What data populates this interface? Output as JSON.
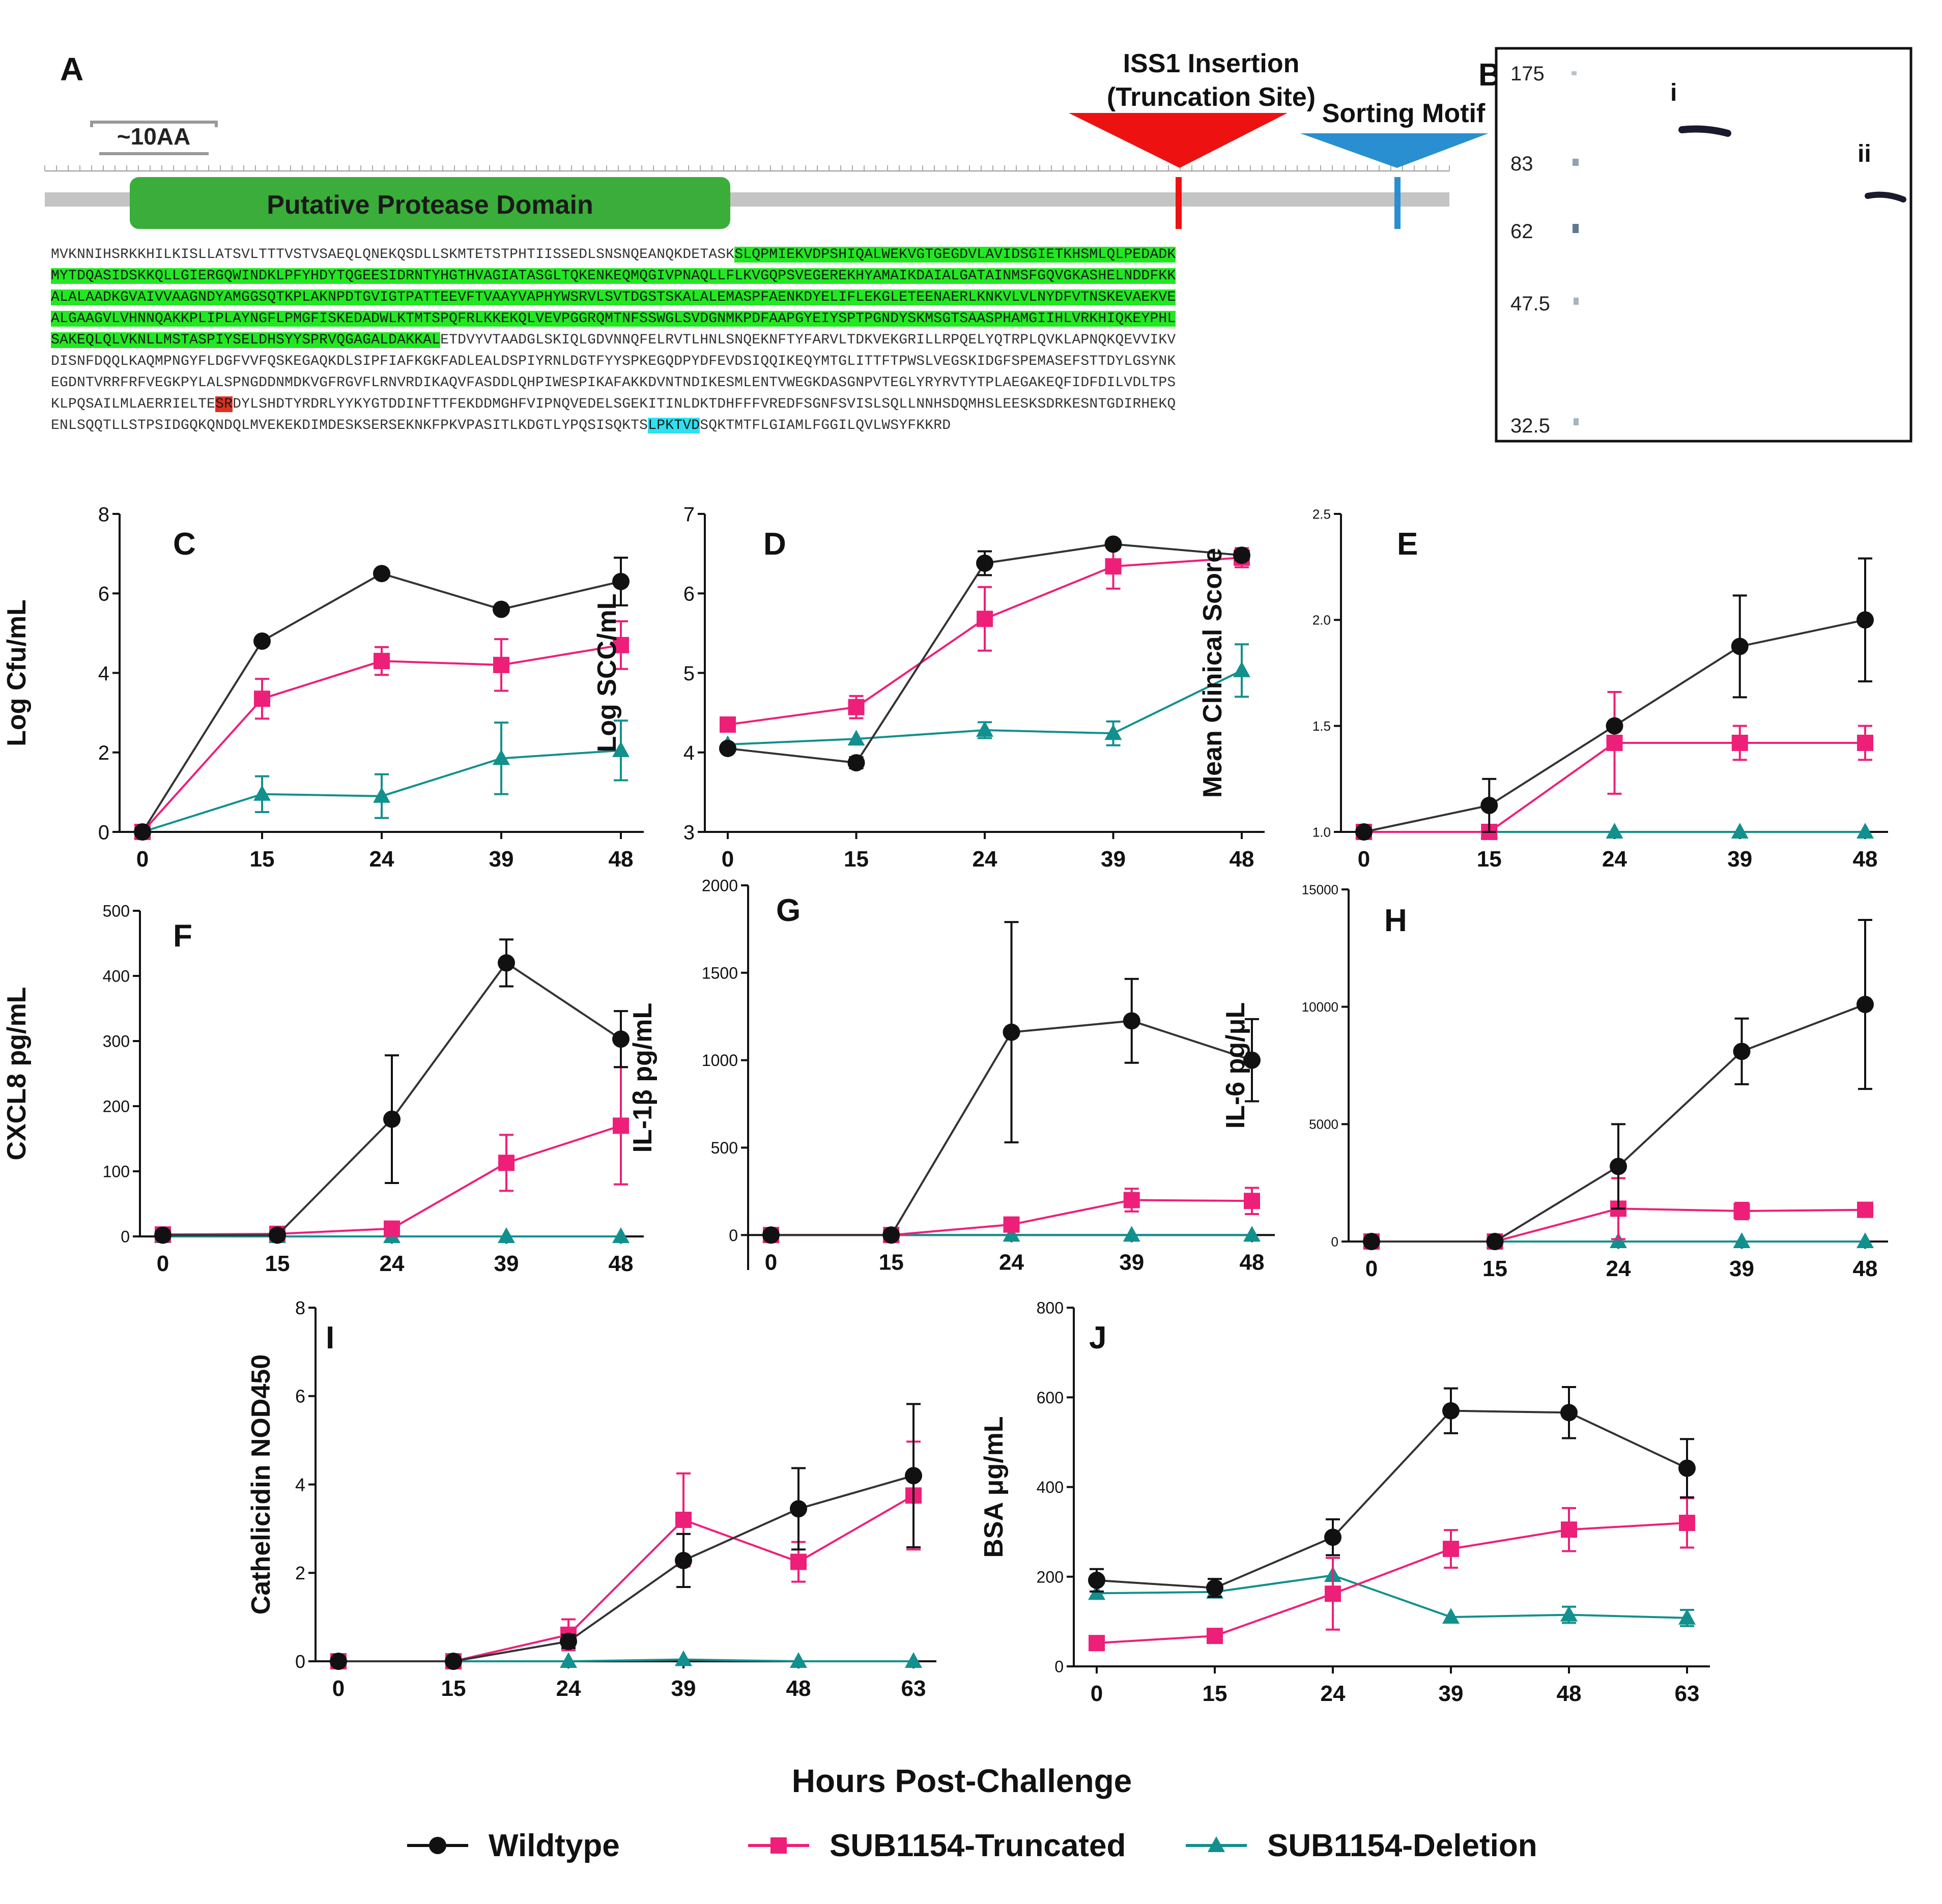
{
  "colors": {
    "wildtype": "#111111",
    "truncated": "#ee1f78",
    "deletion": "#12908e",
    "domain": "#3aad3a",
    "insertion": "#ee1111",
    "sorting": "#2a8fd0"
  },
  "panelA": {
    "label": "A",
    "scale_label": "~10AA",
    "domain_label": "Putative Protease Domain",
    "insertion_label_1": "ISS1 Insertion",
    "insertion_label_2": "(Truncation Site)",
    "sorting_label": "Sorting Motif",
    "sequence_lines": [
      {
        "a": "MVKNNIHSRKKHILKISLLATSVLTTTVSTVSAEQLQNEKQSDLLSKMTETSTPHTIISSEDLSNSNQEANQKDETASK",
        "b": "SLQPMIEKVDPSHIQALWEKVGTGEGDVLAVIDSGIETKHSMLQLPEDADK",
        "c": "",
        "d": "",
        "e": ""
      },
      {
        "a": "",
        "b": "MYTDQASIDSKKQLLGIERGQWINDKLPFYHDYTQGEESIDRNTYHGTHVAGIATASGLTQKENKEQMQGIVPNAQLLFLKVGQPSVEGEREKHYAMAIKDAIALGATAINMSFGQVGKASHELNDDFKK",
        "c": "",
        "d": "",
        "e": ""
      },
      {
        "a": "",
        "b": "ALALAADKGVAIVVAAGNDYAMGGSQTKPLAKNPDTGVIGTPATTEEVFTVAAYVAPHYWSRVLSVTDGSTSKALALEMASPFAENKDYELIFLEKGLETEENAERLKNKVLVLNYDFVTNSKEVAEKVE",
        "c": "",
        "d": "",
        "e": ""
      },
      {
        "a": "",
        "b": "ALGAAGVLVHNNQAKKPLIPLAYNGFLPMGFISKEDADWLKTMTSPQFRLKKEKQLVEVPGGRQMTNFSSWGLSVDGNMKPDFAAPGYEIYSPTPGNDYSKMSGTSAASPHAMGIIHLVRKHIQKEYPHL",
        "c": "",
        "d": "",
        "e": ""
      },
      {
        "a": "",
        "b": "SAKEQLQLVKNLLMSTASPIYSELDHSYYSPRVQGAGALDAKKAL",
        "c": "ETDVYVTAADGLSKIQLGDVNNQFELRVTLHNLSNQEKNFTYFARVLTDKVEKGRILLRPQELYQTRPLQVKLAPNQKQEVVIKV",
        "d": "",
        "e": ""
      },
      {
        "a": "DISNFDQQLKAQMPNGYFLDGFVVFQSKEGAQKDLSIPFIAFKGKFADLEALDSPIYRNLDGTFYYSPKEGQDPYDFEVDSIQQIKEQYMTGLITTFTPWSLVEGSKIDGFSPEMASEFSTTDYLGSYNK",
        "b": "",
        "c": "",
        "d": "",
        "e": ""
      },
      {
        "a": "EGDNTVRRFRFVEGKPYLALSPNGDDNMDKVGFRGVFLRNVRDIKAQVFASDDLQHPIWESPIKAFAKKDVNTNDIKESMLENTVWEGKDASGNPVTEGLYRYRVTYTPLAEGAKEQFIDFDILVDLTPS",
        "b": "",
        "c": "",
        "d": "",
        "e": ""
      },
      {
        "a": "KLPQSAILMLAERRIELTE",
        "b": "",
        "c": "",
        "d": "SR",
        "e": "DYLSHDTYRDRLYYKYGTDDINFTTFEKDDMGHFVIPNQVEDELSGEKITINLDKTDHFFFVREDFSGNFSVISLSQLLNNHSDQMHSLEESKSDRKESNTGDIRHEKQ"
      },
      {
        "a": "ENLSQQTLLSTPSIDGQKQNDQLMVEKEKDIMDESKSERSEKNKFPKVPASITLKDGTLYPQSISQKTS",
        "b": "",
        "c": "",
        "d": "LPKTVD",
        "e": "SQKTMTFLGIAMLFGGILQVLWSYFKKRD"
      }
    ]
  },
  "panelB": {
    "label": "B",
    "markers": [
      "175",
      "83",
      "62",
      "47.5",
      "32.5"
    ],
    "lane_i": "i",
    "lane_ii": "ii"
  },
  "shared": {
    "xlabel": "Hours Post-Challenge",
    "legend": [
      "Wildtype",
      "SUB1154-Truncated",
      "SUB1154-Deletion"
    ]
  },
  "chart_data": [
    {
      "panel": "C",
      "type": "line",
      "ylabel": "Log Cfu/mL",
      "x": [
        0,
        15,
        24,
        39,
        48
      ],
      "ylim": [
        0,
        8
      ],
      "yticks": [
        "0",
        "2",
        "4",
        "6",
        "8"
      ],
      "series": [
        {
          "name": "Wildtype",
          "values": [
            0,
            4.8,
            6.5,
            5.6,
            6.3
          ],
          "err": [
            0,
            0,
            0,
            0,
            0.6
          ]
        },
        {
          "name": "SUB1154-Truncated",
          "values": [
            0,
            3.35,
            4.3,
            4.2,
            4.7
          ],
          "err": [
            0,
            0.5,
            0.35,
            0.65,
            0.6
          ]
        },
        {
          "name": "SUB1154-Deletion",
          "values": [
            0,
            0.95,
            0.9,
            1.85,
            2.05
          ],
          "err": [
            0,
            0.45,
            0.55,
            0.9,
            0.75
          ]
        }
      ]
    },
    {
      "panel": "D",
      "type": "line",
      "ylabel": "Log SCC/mL",
      "x": [
        0,
        15,
        24,
        39,
        48
      ],
      "ylim": [
        3,
        7
      ],
      "yticks": [
        "3",
        "4",
        "5",
        "6",
        "7"
      ],
      "series": [
        {
          "name": "Wildtype",
          "values": [
            4.05,
            3.87,
            6.38,
            6.62,
            6.48
          ],
          "err": [
            0,
            0.07,
            0.15,
            0,
            0.06
          ]
        },
        {
          "name": "SUB1154-Truncated",
          "values": [
            4.35,
            4.57,
            5.68,
            6.34,
            6.45
          ],
          "err": [
            0,
            0.14,
            0.4,
            0.28,
            0.12
          ]
        },
        {
          "name": "SUB1154-Deletion",
          "values": [
            4.1,
            4.17,
            4.28,
            4.24,
            5.03
          ],
          "err": [
            0,
            0,
            0.1,
            0.15,
            0.33
          ]
        }
      ]
    },
    {
      "panel": "E",
      "type": "line",
      "ylabel": "Mean Clinical Score",
      "x": [
        0,
        15,
        24,
        39,
        48
      ],
      "ylim": [
        1,
        2.5
      ],
      "yticks": [
        "1.0",
        "1.5",
        "2.0",
        "2.5"
      ],
      "series": [
        {
          "name": "Wildtype",
          "values": [
            1.0,
            1.125,
            1.5,
            1.875,
            2.0
          ],
          "err": [
            0,
            0.125,
            0,
            0.24,
            0.29
          ]
        },
        {
          "name": "SUB1154-Truncated",
          "values": [
            1.0,
            1.0,
            1.42,
            1.42,
            1.42
          ],
          "err": [
            0,
            0,
            0.24,
            0.08,
            0.08
          ]
        },
        {
          "name": "SUB1154-Deletion",
          "values": [
            1.0,
            1.0,
            1.0,
            1.0,
            1.0
          ],
          "err": [
            0,
            0,
            0,
            0,
            0
          ]
        }
      ]
    },
    {
      "panel": "F",
      "type": "line",
      "ylabel": "CXCL8 pg/mL",
      "x": [
        0,
        15,
        24,
        39,
        48
      ],
      "ylim": [
        0,
        500
      ],
      "yticks": [
        "0",
        "100",
        "200",
        "300",
        "400",
        "500"
      ],
      "series": [
        {
          "name": "Wildtype",
          "values": [
            2,
            2,
            180,
            420,
            303
          ],
          "err": [
            0,
            0,
            98,
            36,
            43
          ]
        },
        {
          "name": "SUB1154-Truncated",
          "values": [
            3,
            4,
            12,
            113,
            170
          ],
          "err": [
            0,
            0,
            0,
            43,
            90
          ]
        },
        {
          "name": "SUB1154-Deletion",
          "values": [
            0,
            0,
            0,
            0,
            0
          ],
          "err": [
            0,
            0,
            0,
            0,
            0
          ]
        }
      ]
    },
    {
      "panel": "G",
      "type": "line",
      "ylabel": "IL-1β pg/mL",
      "x": [
        0,
        15,
        24,
        39,
        48
      ],
      "ylim": [
        -200,
        2000
      ],
      "yticks": [
        "0",
        "500",
        "1000",
        "1500",
        "2000"
      ],
      "series": [
        {
          "name": "Wildtype",
          "values": [
            0,
            0,
            1160,
            1225,
            1000
          ],
          "err": [
            0,
            0,
            630,
            240,
            235
          ]
        },
        {
          "name": "SUB1154-Truncated",
          "values": [
            0,
            0,
            60,
            200,
            195
          ],
          "err": [
            0,
            0,
            0,
            65,
            75
          ]
        },
        {
          "name": "SUB1154-Deletion",
          "values": [
            0,
            0,
            0,
            0,
            0
          ],
          "err": [
            0,
            0,
            0,
            0,
            0
          ]
        }
      ]
    },
    {
      "panel": "H",
      "type": "line",
      "ylabel": "IL-6 pg/μL",
      "x": [
        0,
        15,
        24,
        39,
        48
      ],
      "ylim": [
        0,
        15000
      ],
      "yticks": [
        "0",
        "5000",
        "10000",
        "15000"
      ],
      "series": [
        {
          "name": "Wildtype",
          "values": [
            0,
            0,
            3200,
            8100,
            10100
          ],
          "err": [
            0,
            0,
            1800,
            1400,
            3600
          ]
        },
        {
          "name": "SUB1154-Truncated",
          "values": [
            0,
            0,
            1400,
            1300,
            1350
          ],
          "err": [
            0,
            0,
            1300,
            350,
            300
          ]
        },
        {
          "name": "SUB1154-Deletion",
          "values": [
            0,
            0,
            0,
            0,
            0
          ],
          "err": [
            0,
            0,
            0,
            0,
            0
          ]
        }
      ]
    },
    {
      "panel": "I",
      "type": "line",
      "ylabel": "Cathelicidin NOD450",
      "x": [
        0,
        15,
        24,
        39,
        48,
        63
      ],
      "ylim": [
        0,
        8
      ],
      "yticks": [
        "0",
        "2",
        "4",
        "6",
        "8"
      ],
      "series": [
        {
          "name": "Wildtype",
          "values": [
            0,
            0,
            0.45,
            2.28,
            3.45,
            4.2
          ],
          "err": [
            0,
            0,
            0.15,
            0.6,
            0.92,
            1.62
          ]
        },
        {
          "name": "SUB1154-Truncated",
          "values": [
            0,
            0,
            0.6,
            3.2,
            2.25,
            3.75
          ],
          "err": [
            0,
            0,
            0.35,
            1.05,
            0.45,
            1.22
          ]
        },
        {
          "name": "SUB1154-Deletion",
          "values": [
            0,
            0,
            0,
            0.04,
            0,
            0
          ],
          "err": [
            0,
            0,
            0,
            0,
            0,
            0
          ]
        }
      ]
    },
    {
      "panel": "J",
      "type": "line",
      "ylabel": "BSA μg/mL",
      "x": [
        0,
        15,
        24,
        39,
        48,
        63
      ],
      "ylim": [
        0,
        800
      ],
      "yticks": [
        "0",
        "200",
        "400",
        "600",
        "800"
      ],
      "series": [
        {
          "name": "Wildtype",
          "values": [
            192,
            175,
            288,
            570,
            566,
            442
          ],
          "err": [
            25,
            20,
            40,
            50,
            57,
            65
          ]
        },
        {
          "name": "SUB1154-Truncated",
          "values": [
            52,
            68,
            162,
            262,
            305,
            320
          ],
          "err": [
            0,
            0,
            80,
            42,
            48,
            55
          ]
        },
        {
          "name": "SUB1154-Deletion",
          "values": [
            163,
            166,
            203,
            110,
            115,
            108
          ],
          "err": [
            0,
            0,
            0,
            0,
            18,
            18
          ]
        }
      ]
    }
  ]
}
